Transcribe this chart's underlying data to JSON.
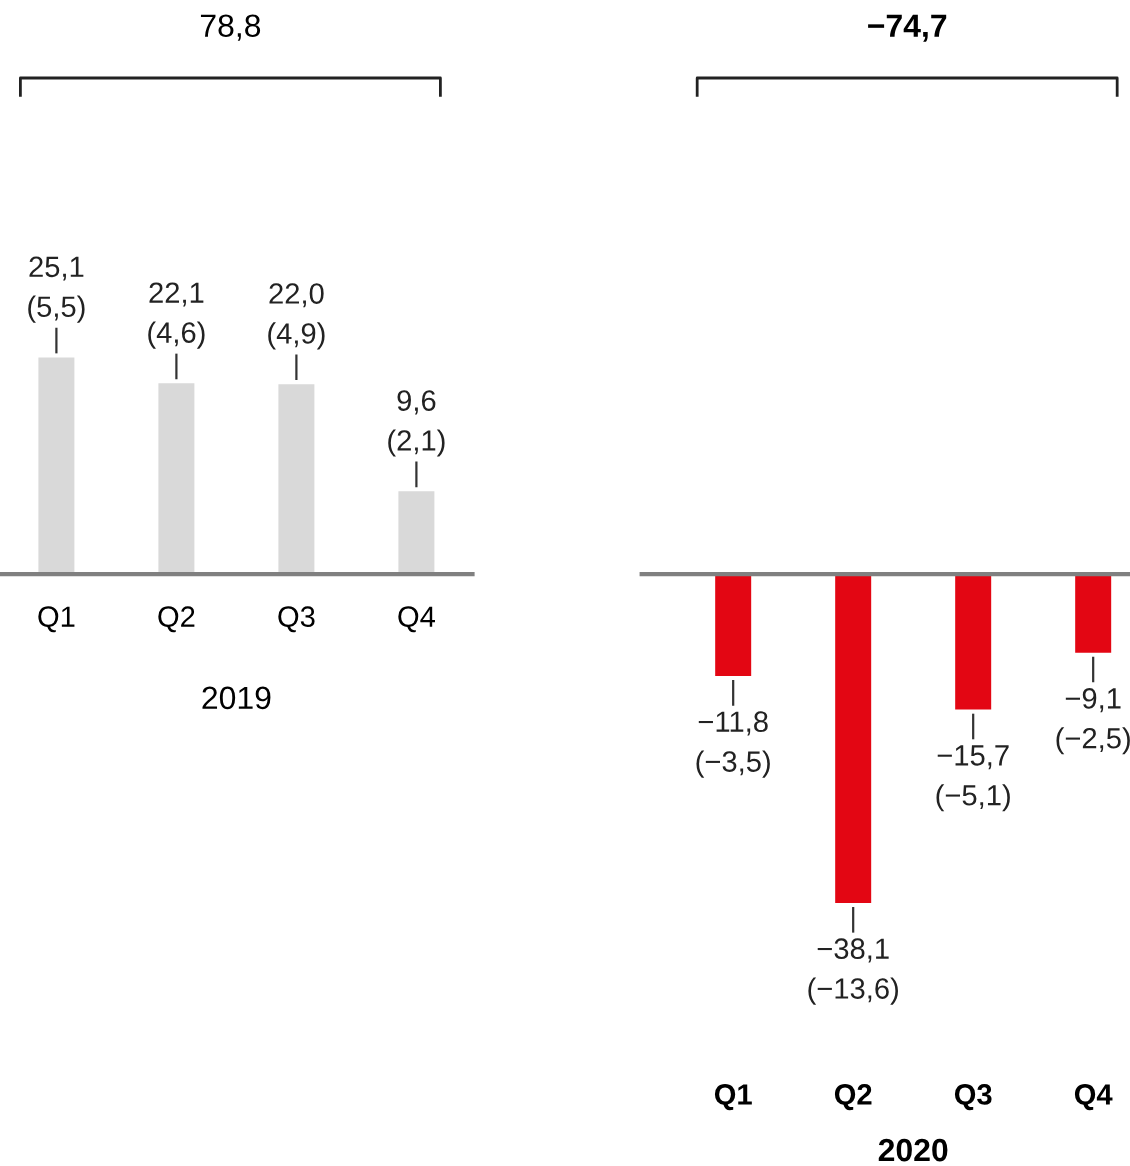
{
  "chart_data": [
    {
      "type": "bar",
      "categories": [
        "Q1",
        "Q2",
        "Q3",
        "Q4"
      ],
      "values": [
        25.1,
        22.1,
        22.0,
        9.6
      ],
      "color": "#d9d9d9",
      "value_labels": [
        "25,1\n(5,5)",
        "22,1\n(4,6)",
        "22,0\n(4,9)",
        "9,6\n(2,1)"
      ],
      "annotations": [
        "78,8",
        "2019"
      ]
    },
    {
      "type": "bar",
      "categories": [
        "Q1",
        "Q2",
        "Q3",
        "Q4"
      ],
      "values": [
        -11.8,
        -38.1,
        -15.7,
        -9.1
      ],
      "color": "#e30613",
      "value_labels": [
        "−11,8\n(−3,5)",
        "−38,1\n(−13,6)",
        "−15,7\n(−5,1)",
        "−9,1\n(−2,5)"
      ],
      "annotations": [
        "−74,7",
        "2020"
      ]
    }
  ]
}
